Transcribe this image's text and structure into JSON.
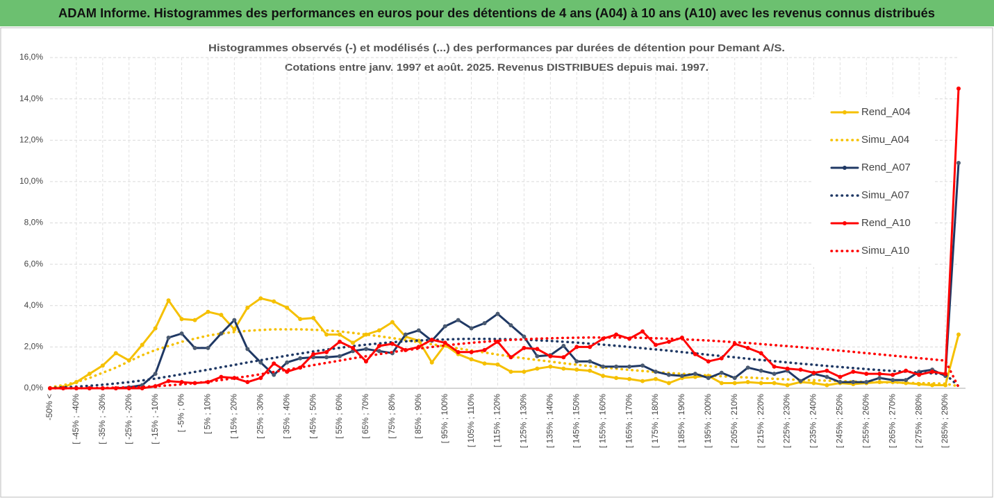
{
  "header": {
    "title": "ADAM Informe. Histogrammes des performances en euros pour des détentions de 4 ans (A04) à 10 ans (A10) avec les revenus connus distribués"
  },
  "chart_data": {
    "type": "line",
    "title": "Histogrammes observés (-) et modélisés (...) des performances par durées de détention pour Demant A/S.",
    "subtitle": "Cotations entre janv. 1997 et août. 2025. Revenus DISTRIBUES depuis mai. 1997.",
    "categories": [
      "-50% <",
      null,
      "[ -45% ; -40%",
      null,
      "[ -35% ; -30%",
      null,
      "[ -25% ; -20%",
      null,
      "[ -15% ; -10%",
      null,
      "[ -5% ; 0%",
      null,
      "[ 5% ; 10%",
      null,
      "[ 15% ; 20%",
      null,
      "[ 25% ; 30%",
      null,
      "[ 35% ; 40%",
      null,
      "[ 45% ; 50%",
      null,
      "[ 55% ; 60%",
      null,
      "[ 65% ; 70%",
      null,
      "[ 75% ; 80%",
      null,
      "[ 85% ; 90%",
      null,
      "[ 95% ; 100%",
      null,
      "[ 105% ; 110%",
      null,
      "[ 115% ; 120%",
      null,
      "[ 125% ; 130%",
      null,
      "[ 135% ; 140%",
      null,
      "[ 145% ; 150%",
      null,
      "[ 155% ; 160%",
      null,
      "[ 165% ; 170%",
      null,
      "[ 175% ; 180%",
      null,
      "[ 185% ; 190%",
      null,
      "[ 195% ; 200%",
      null,
      "[ 205% ; 210%",
      null,
      "[ 215% ; 220%",
      null,
      "[ 225% ; 230%",
      null,
      "[ 235% ; 240%",
      null,
      "[ 245% ; 250%",
      null,
      "[ 255% ; 260%",
      null,
      "[ 265% ; 270%",
      null,
      "[ 275% ; 280%",
      null,
      "[ 285% ; 290%",
      null
    ],
    "series": [
      {
        "name": "Rend_A04",
        "color": "#f5c000",
        "style": "solid",
        "markers": true,
        "values": [
          0,
          0.05,
          0.3,
          0.7,
          1.1,
          1.7,
          1.35,
          2.1,
          2.9,
          4.25,
          3.35,
          3.3,
          3.7,
          3.55,
          2.85,
          3.9,
          4.35,
          4.2,
          3.9,
          3.35,
          3.4,
          2.6,
          2.6,
          2.2,
          2.6,
          2.8,
          3.2,
          2.5,
          2.3,
          1.25,
          2.1,
          1.65,
          1.4,
          1.2,
          1.15,
          0.8,
          0.8,
          0.95,
          1.05,
          0.95,
          0.9,
          0.85,
          0.6,
          0.5,
          0.45,
          0.35,
          0.45,
          0.25,
          0.5,
          0.55,
          0.6,
          0.25,
          0.25,
          0.3,
          0.25,
          0.25,
          0.15,
          0.3,
          0.25,
          0.15,
          0.25,
          0.2,
          0.25,
          0.3,
          0.3,
          0.25,
          0.2,
          0.15,
          0.15,
          2.6
        ]
      },
      {
        "name": "Simu_A04",
        "color": "#f5c000",
        "style": "dotted",
        "markers": false,
        "values": [
          0.05,
          0.15,
          0.3,
          0.5,
          0.75,
          1.0,
          1.3,
          1.6,
          1.85,
          2.05,
          2.25,
          2.4,
          2.55,
          2.65,
          2.72,
          2.78,
          2.82,
          2.85,
          2.85,
          2.85,
          2.83,
          2.8,
          2.75,
          2.68,
          2.6,
          2.52,
          2.43,
          2.33,
          2.23,
          2.13,
          2.03,
          1.93,
          1.83,
          1.73,
          1.63,
          1.54,
          1.45,
          1.37,
          1.29,
          1.21,
          1.14,
          1.07,
          1.01,
          0.95,
          0.89,
          0.84,
          0.79,
          0.74,
          0.7,
          0.66,
          0.62,
          0.58,
          0.55,
          0.52,
          0.49,
          0.46,
          0.43,
          0.41,
          0.39,
          0.37,
          0.35,
          0.33,
          0.31,
          0.29,
          0.28,
          0.26,
          0.25,
          0.24,
          0.22,
          0.1
        ]
      },
      {
        "name": "Rend_A07",
        "color": "#1f3864",
        "style": "solid",
        "markers": true,
        "values": [
          0,
          0,
          0,
          0,
          0,
          0,
          0.05,
          0.15,
          0.7,
          2.45,
          2.65,
          1.95,
          1.95,
          2.65,
          3.3,
          1.9,
          1.25,
          0.65,
          1.25,
          1.45,
          1.5,
          1.5,
          1.55,
          1.8,
          1.9,
          1.8,
          1.7,
          2.6,
          2.8,
          2.3,
          3.0,
          3.3,
          2.9,
          3.15,
          3.6,
          3.05,
          2.5,
          1.55,
          1.6,
          2.05,
          1.3,
          1.3,
          1.05,
          1.05,
          1.05,
          1.1,
          0.8,
          0.65,
          0.6,
          0.7,
          0.5,
          0.75,
          0.5,
          1.0,
          0.85,
          0.7,
          0.85,
          0.35,
          0.7,
          0.55,
          0.3,
          0.3,
          0.3,
          0.5,
          0.4,
          0.4,
          0.8,
          0.9,
          0.6,
          10.9
        ]
      },
      {
        "name": "Simu_A07",
        "color": "#1f3864",
        "style": "dotted",
        "markers": false,
        "values": [
          0.02,
          0.05,
          0.08,
          0.12,
          0.17,
          0.23,
          0.3,
          0.38,
          0.47,
          0.57,
          0.68,
          0.79,
          0.9,
          1.02,
          1.13,
          1.25,
          1.36,
          1.47,
          1.58,
          1.68,
          1.78,
          1.87,
          1.96,
          2.04,
          2.11,
          2.17,
          2.23,
          2.27,
          2.31,
          2.34,
          2.36,
          2.38,
          2.39,
          2.39,
          2.38,
          2.37,
          2.35,
          2.32,
          2.29,
          2.25,
          2.21,
          2.16,
          2.11,
          2.06,
          2.0,
          1.94,
          1.88,
          1.82,
          1.75,
          1.69,
          1.62,
          1.56,
          1.5,
          1.43,
          1.37,
          1.31,
          1.25,
          1.19,
          1.14,
          1.08,
          1.03,
          0.98,
          0.93,
          0.88,
          0.84,
          0.8,
          0.76,
          0.72,
          0.68,
          0.1
        ]
      },
      {
        "name": "Rend_A10",
        "color": "#ff0000",
        "style": "solid",
        "markers": true,
        "values": [
          0,
          0,
          0,
          0,
          0,
          0,
          0,
          0,
          0.1,
          0.35,
          0.3,
          0.25,
          0.3,
          0.55,
          0.5,
          0.3,
          0.5,
          1.2,
          0.8,
          1.0,
          1.65,
          1.75,
          2.25,
          1.95,
          1.3,
          2.05,
          2.15,
          1.85,
          2.0,
          2.35,
          2.2,
          1.75,
          1.75,
          1.85,
          2.25,
          1.5,
          1.95,
          1.9,
          1.55,
          1.5,
          2.0,
          2.0,
          2.4,
          2.6,
          2.4,
          2.75,
          2.1,
          2.25,
          2.45,
          1.65,
          1.3,
          1.45,
          2.15,
          1.95,
          1.7,
          1.05,
          0.95,
          0.9,
          0.75,
          0.85,
          0.55,
          0.8,
          0.7,
          0.7,
          0.65,
          0.85,
          0.65,
          0.8,
          0.7,
          14.5
        ]
      },
      {
        "name": "Simu_A10",
        "color": "#ff0000",
        "style": "dotted",
        "markers": false,
        "values": [
          0,
          0,
          0,
          0.01,
          0.02,
          0.03,
          0.05,
          0.07,
          0.1,
          0.14,
          0.19,
          0.25,
          0.32,
          0.4,
          0.49,
          0.58,
          0.68,
          0.79,
          0.9,
          1.01,
          1.12,
          1.23,
          1.34,
          1.45,
          1.55,
          1.65,
          1.75,
          1.84,
          1.92,
          2.0,
          2.07,
          2.14,
          2.2,
          2.25,
          2.3,
          2.34,
          2.37,
          2.4,
          2.42,
          2.44,
          2.45,
          2.46,
          2.46,
          2.46,
          2.45,
          2.44,
          2.42,
          2.4,
          2.37,
          2.34,
          2.31,
          2.27,
          2.23,
          2.19,
          2.14,
          2.09,
          2.04,
          1.99,
          1.93,
          1.88,
          1.82,
          1.76,
          1.7,
          1.64,
          1.58,
          1.52,
          1.46,
          1.4,
          1.34,
          0.05
        ]
      }
    ],
    "ylim": [
      0,
      16
    ],
    "yticks": [
      {
        "value": 0,
        "label": "0,0%"
      },
      {
        "value": 2,
        "label": "2,0%"
      },
      {
        "value": 4,
        "label": "4,0%"
      },
      {
        "value": 6,
        "label": "6,0%"
      },
      {
        "value": 8,
        "label": "8,0%"
      },
      {
        "value": 10,
        "label": "10,0%"
      },
      {
        "value": 12,
        "label": "12,0%"
      },
      {
        "value": 14,
        "label": "14,0%"
      },
      {
        "value": 16,
        "label": "16,0%"
      }
    ],
    "grid": true,
    "legend": "right"
  }
}
